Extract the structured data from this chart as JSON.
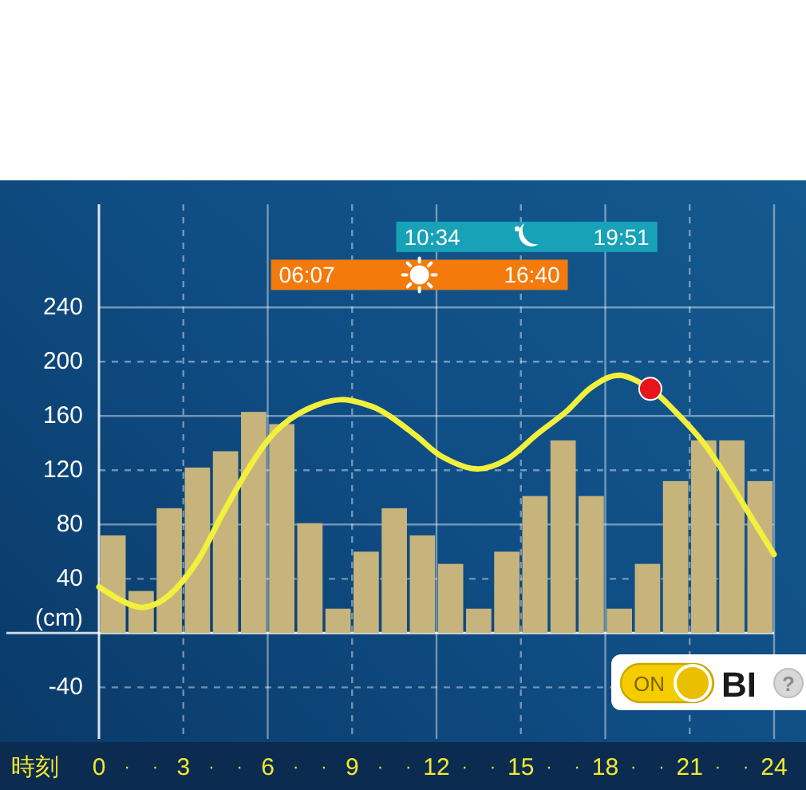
{
  "chart_data": {
    "type": "line",
    "xlabel": "時刻",
    "ylabel": "(cm)",
    "xlim": [
      0,
      24
    ],
    "xticks": [
      0,
      {
        "value": 1,
        "label": "·"
      },
      {
        "value": 2,
        "label": "·"
      },
      3,
      {
        "value": 4,
        "label": "·"
      },
      {
        "value": 5,
        "label": "·"
      },
      6,
      {
        "value": 7,
        "label": "·"
      },
      {
        "value": 8,
        "label": "·"
      },
      9,
      {
        "value": 10,
        "label": "·"
      },
      {
        "value": 11,
        "label": "·"
      },
      12,
      {
        "value": 13,
        "label": "·"
      },
      {
        "value": 14,
        "label": "·"
      },
      15,
      {
        "value": 16,
        "label": "·"
      },
      {
        "value": 17,
        "label": "·"
      },
      18,
      {
        "value": 19,
        "label": "·"
      },
      {
        "value": 20,
        "label": "·"
      },
      21,
      {
        "value": 22,
        "label": "·"
      },
      {
        "value": 23,
        "label": "·"
      },
      24
    ],
    "ylim": [
      -78,
      316
    ],
    "yticks": [
      -40,
      {
        "value": 0,
        "label": null
      },
      40,
      80,
      120,
      160,
      200,
      240
    ],
    "grid": true,
    "series": [
      {
        "type": "bar",
        "color": "#c6b47c",
        "x": [
          0.5,
          1.5,
          2.5,
          3.5,
          4.5,
          5.5,
          6.5,
          7.5,
          8.5,
          9.5,
          10.5,
          11.5,
          12.5,
          13.5,
          14.5,
          15.5,
          16.5,
          17.5,
          18.5,
          19.5,
          20.5,
          21.5,
          22.5,
          23.5
        ],
        "values": [
          72,
          31,
          92,
          122,
          134,
          163,
          154,
          81,
          18,
          60,
          92,
          72,
          51,
          18,
          60,
          101,
          142,
          101,
          18,
          51,
          112,
          142,
          142,
          112
        ]
      },
      {
        "color": "#f2f03c",
        "x": [
          0,
          0.8,
          1.6,
          2.5,
          3.5,
          4.4,
          5.4,
          6.3,
          7.4,
          8.6,
          9.7,
          10.4,
          11.3,
          12.2,
          13.4,
          14.5,
          15.6,
          16.6,
          17.5,
          18.5,
          19.6,
          20.5,
          21.5,
          22.4,
          23.2,
          24
        ],
        "values": [
          34,
          24,
          19,
          28,
          53,
          88,
          124,
          149,
          165,
          172,
          167,
          159,
          145,
          130,
          121,
          128,
          147,
          163,
          181,
          190,
          180,
          163,
          140,
          112,
          85,
          58
        ]
      },
      {
        "type": "scatter",
        "color": "#e8141c",
        "marker": "circle",
        "x": [
          19.6
        ],
        "values": [
          180
        ]
      }
    ],
    "bands": [
      {
        "axis": "x",
        "from": 10.567,
        "to": 19.85,
        "color": "#17a2b8"
      },
      {
        "axis": "x",
        "from": 6.117,
        "to": 16.667,
        "color": "#f47a0c"
      }
    ],
    "annotations": [
      {
        "text": "10:34",
        "x": 10.567,
        "y": 292
      },
      {
        "text": "19:51",
        "x": 19.85,
        "y": 292
      },
      {
        "text": "06:07",
        "x": 6.117,
        "y": 264
      },
      {
        "text": "16:40",
        "x": 16.667,
        "y": 264
      },
      "ON",
      "BI",
      "?"
    ]
  }
}
